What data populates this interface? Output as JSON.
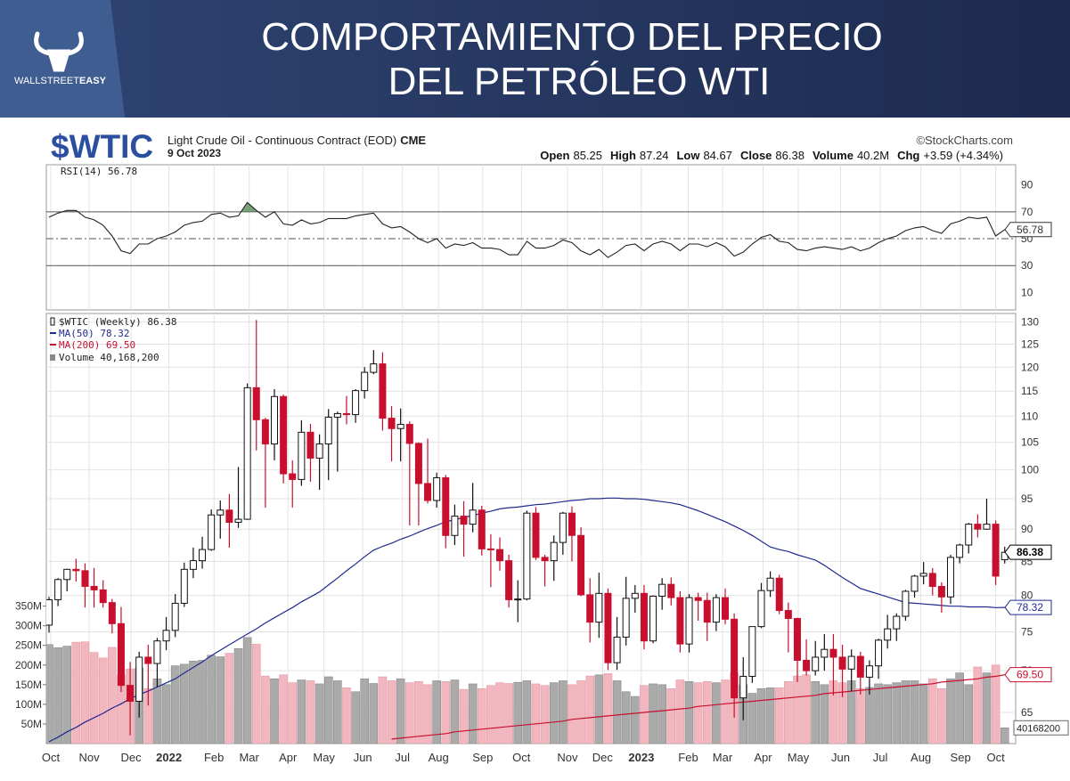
{
  "header": {
    "title_lines": [
      "COMPORTAMIENTO DEL PRECIO",
      "DEL PETRÓLEO WTI"
    ],
    "logo": [
      "WALLSTREET",
      "EASY"
    ]
  },
  "chart_data": {
    "type": "candlestick",
    "symbol": "$WTIC",
    "description": "Light Crude Oil - Continuous Contract (EOD)",
    "exchange": "CME",
    "date": "9 Oct 2023",
    "source": "©StockCharts.com",
    "quote": [
      {
        "label": "Open",
        "value": "85.25"
      },
      {
        "label": "High",
        "value": "87.24"
      },
      {
        "label": "Low",
        "value": "84.67"
      },
      {
        "label": "Close",
        "value": "86.38"
      },
      {
        "label": "Volume",
        "value": "40.2M"
      },
      {
        "label": "Chg",
        "value": "+3.59 (+4.34%)"
      }
    ],
    "price_name": "$WTIC (Weekly) 86.38",
    "log": true,
    "grid": true,
    "ylim": [
      61.5,
      132
    ],
    "yticks": [
      65,
      70,
      75,
      80,
      85,
      90,
      95,
      100,
      105,
      110,
      115,
      120,
      125,
      130
    ],
    "y2lim": [
      0,
      1095000000
    ],
    "y2ticks": [
      {
        "value": 50000000,
        "label": "50M"
      },
      {
        "value": 100000000,
        "label": "100M"
      },
      {
        "value": 150000000,
        "label": "150M"
      },
      {
        "value": 200000000,
        "label": "200M"
      },
      {
        "value": 250000000,
        "label": "250M"
      },
      {
        "value": 300000000,
        "label": "300M"
      },
      {
        "value": 350000000,
        "label": "350M"
      }
    ],
    "xticks": [
      {
        "value": 0.2,
        "label": "Oct"
      },
      {
        "value": 4.45,
        "label": "Nov"
      },
      {
        "value": 9.1,
        "label": "Dec"
      },
      {
        "value": 13.3,
        "label": "2022"
      },
      {
        "value": 18.3,
        "label": "Feb"
      },
      {
        "value": 22.2,
        "label": "Mar"
      },
      {
        "value": 26.5,
        "label": "Apr"
      },
      {
        "value": 30.5,
        "label": "May"
      },
      {
        "value": 34.8,
        "label": "Jun"
      },
      {
        "value": 39.2,
        "label": "Jul"
      },
      {
        "value": 43.2,
        "label": "Aug"
      },
      {
        "value": 48.1,
        "label": "Sep"
      },
      {
        "value": 52.4,
        "label": "Oct"
      },
      {
        "value": 57.5,
        "label": "Nov"
      },
      {
        "value": 61.4,
        "label": "Dec"
      },
      {
        "value": 65.7,
        "label": "2023"
      },
      {
        "value": 70.9,
        "label": "Feb"
      },
      {
        "value": 74.7,
        "label": "Mar"
      },
      {
        "value": 79.2,
        "label": "Apr"
      },
      {
        "value": 83.1,
        "label": "May"
      },
      {
        "value": 87.8,
        "label": "Jun"
      },
      {
        "value": 92.2,
        "label": "Jul"
      },
      {
        "value": 96.7,
        "label": "Aug"
      },
      {
        "value": 101.1,
        "label": "Sep"
      },
      {
        "value": 105,
        "label": "Oct"
      }
    ],
    "colors": {
      "up": "#ffffff",
      "down": "#c8102e",
      "volume_up": "#aaaaaa",
      "volume_down": "#f2b6bf",
      "rsi_fill": "#5a8a5a"
    },
    "candles": [
      [
        75.9,
        79.8,
        74.9,
        79.4
      ],
      [
        79.4,
        82.5,
        78.5,
        82.3
      ],
      [
        82.3,
        83.9,
        80.6,
        83.8
      ],
      [
        83.8,
        85.4,
        82.0,
        83.6
      ],
      [
        83.6,
        84.7,
        78.3,
        81.3
      ],
      [
        81.3,
        84.0,
        78.3,
        80.8
      ],
      [
        80.8,
        82.2,
        78.3,
        79.0
      ],
      [
        79.0,
        79.5,
        74.8,
        76.1
      ],
      [
        76.1,
        78.4,
        67.4,
        68.2
      ],
      [
        68.2,
        71.1,
        62.4,
        66.3
      ],
      [
        66.3,
        72.4,
        64.4,
        71.7
      ],
      [
        71.7,
        73.3,
        65.8,
        70.9
      ],
      [
        70.9,
        74.2,
        68.0,
        73.8
      ],
      [
        73.8,
        77.0,
        72.6,
        75.2
      ],
      [
        75.2,
        80.2,
        74.3,
        78.9
      ],
      [
        78.9,
        84.8,
        78.4,
        83.8
      ],
      [
        83.8,
        87.1,
        82.5,
        85.1
      ],
      [
        85.1,
        88.8,
        83.9,
        86.8
      ],
      [
        86.8,
        93.2,
        86.6,
        92.3
      ],
      [
        92.3,
        94.7,
        88.5,
        93.1
      ],
      [
        93.1,
        95.8,
        87.1,
        91.1
      ],
      [
        91.1,
        100.5,
        90.2,
        91.6
      ],
      [
        91.6,
        116.6,
        91.5,
        115.7
      ],
      [
        115.7,
        130.5,
        103.5,
        109.3
      ],
      [
        109.3,
        109.7,
        93.5,
        104.7
      ],
      [
        104.7,
        115.4,
        101.7,
        113.9
      ],
      [
        113.9,
        114.3,
        97.6,
        99.3
      ],
      [
        99.3,
        101.7,
        93.5,
        98.3
      ],
      [
        98.3,
        109.2,
        97.2,
        106.9
      ],
      [
        106.9,
        108.5,
        97.9,
        102.1
      ],
      [
        102.1,
        106.5,
        96.5,
        104.7
      ],
      [
        104.7,
        111.4,
        98.2,
        109.8
      ],
      [
        109.8,
        110.9,
        99.7,
        110.5
      ],
      [
        110.5,
        114.0,
        108.4,
        110.3
      ],
      [
        110.3,
        115.4,
        108.7,
        115.1
      ],
      [
        115.1,
        120.0,
        113.5,
        118.9
      ],
      [
        118.9,
        123.7,
        118.5,
        120.7
      ],
      [
        120.7,
        123.2,
        107.2,
        109.6
      ],
      [
        109.6,
        112.0,
        101.5,
        107.6
      ],
      [
        107.6,
        111.5,
        101.5,
        108.4
      ],
      [
        108.4,
        109.0,
        90.6,
        104.8
      ],
      [
        104.8,
        105.0,
        90.6,
        97.6
      ],
      [
        97.6,
        105.7,
        94.2,
        94.7
      ],
      [
        94.7,
        99.5,
        93.5,
        98.6
      ],
      [
        98.6,
        99.1,
        87.0,
        89.0
      ],
      [
        89.0,
        94.0,
        87.5,
        92.1
      ],
      [
        92.1,
        94.6,
        85.7,
        90.8
      ],
      [
        90.8,
        97.7,
        89.5,
        93.1
      ],
      [
        93.1,
        93.8,
        85.9,
        86.9
      ],
      [
        86.9,
        89.2,
        81.2,
        86.8
      ],
      [
        86.8,
        88.7,
        83.6,
        85.1
      ],
      [
        85.1,
        86.0,
        78.3,
        79.4
      ],
      [
        79.4,
        82.2,
        76.3,
        79.5
      ],
      [
        79.5,
        93.0,
        79.3,
        92.6
      ],
      [
        92.6,
        93.6,
        85.2,
        85.6
      ],
      [
        85.6,
        86.0,
        81.3,
        85.1
      ],
      [
        85.1,
        89.0,
        82.1,
        87.9
      ],
      [
        87.9,
        92.8,
        86.0,
        92.6
      ],
      [
        92.6,
        93.7,
        85.0,
        89.0
      ],
      [
        89.0,
        90.3,
        79.9,
        80.1
      ],
      [
        80.1,
        82.5,
        73.6,
        76.3
      ],
      [
        76.3,
        83.3,
        74.2,
        80.3
      ],
      [
        80.3,
        81.0,
        70.1,
        71.0
      ],
      [
        71.0,
        77.0,
        70.1,
        74.3
      ],
      [
        74.3,
        82.7,
        73.2,
        79.6
      ],
      [
        79.6,
        81.5,
        77.6,
        80.3
      ],
      [
        80.3,
        81.5,
        72.7,
        73.8
      ],
      [
        73.8,
        80.0,
        73.5,
        79.9
      ],
      [
        79.9,
        82.5,
        78.0,
        81.6
      ],
      [
        81.6,
        82.6,
        78.6,
        79.7
      ],
      [
        79.7,
        80.6,
        72.3,
        73.4
      ],
      [
        73.4,
        80.2,
        72.3,
        79.7
      ],
      [
        79.7,
        80.4,
        76.5,
        79.3
      ],
      [
        79.3,
        80.4,
        73.8,
        76.3
      ],
      [
        76.3,
        80.2,
        75.1,
        79.7
      ],
      [
        79.7,
        81.0,
        76.0,
        76.7
      ],
      [
        76.7,
        77.5,
        64.4,
        66.7
      ],
      [
        66.7,
        71.7,
        64.1,
        69.3
      ],
      [
        69.3,
        75.7,
        68.5,
        75.7
      ],
      [
        75.7,
        81.8,
        75.5,
        80.7
      ],
      [
        80.7,
        83.5,
        79.8,
        82.5
      ],
      [
        82.5,
        83.0,
        77.4,
        77.9
      ],
      [
        77.9,
        79.0,
        72.3,
        76.8
      ],
      [
        76.8,
        76.9,
        68.6,
        71.3
      ],
      [
        71.3,
        74.0,
        69.4,
        70.0
      ],
      [
        70.0,
        73.8,
        69.4,
        71.7
      ],
      [
        71.7,
        74.7,
        70.0,
        72.7
      ],
      [
        72.7,
        74.7,
        67.0,
        71.7
      ],
      [
        71.7,
        73.3,
        66.8,
        70.2
      ],
      [
        70.2,
        72.7,
        67.5,
        71.8
      ],
      [
        71.8,
        72.4,
        67.1,
        69.2
      ],
      [
        69.2,
        71.3,
        67.1,
        70.6
      ],
      [
        70.6,
        74.1,
        69.0,
        73.9
      ],
      [
        73.9,
        77.3,
        72.8,
        75.4
      ],
      [
        75.4,
        77.5,
        73.8,
        77.1
      ],
      [
        77.1,
        80.8,
        76.5,
        80.6
      ],
      [
        80.6,
        83.0,
        79.7,
        82.8
      ],
      [
        82.8,
        84.9,
        81.6,
        83.2
      ],
      [
        83.2,
        84.0,
        80.0,
        81.3
      ],
      [
        81.3,
        81.9,
        77.6,
        79.8
      ],
      [
        79.8,
        86.0,
        78.8,
        85.6
      ],
      [
        85.6,
        87.7,
        84.7,
        87.5
      ],
      [
        87.5,
        91.0,
        86.2,
        90.8
      ],
      [
        90.8,
        92.4,
        88.7,
        90.0
      ],
      [
        90.0,
        95.0,
        89.9,
        90.8
      ],
      [
        90.8,
        91.4,
        81.5,
        82.8
      ],
      [
        85.25,
        87.24,
        84.67,
        86.38
      ]
    ],
    "volume": {
      "name": "Volume 40,168,200",
      "values": [
        252000000,
        244000000,
        248000000,
        258000000,
        259000000,
        232000000,
        218000000,
        245000000,
        175000000,
        190000000,
        192000000,
        140000000,
        165000000,
        150000000,
        198000000,
        202000000,
        210000000,
        212000000,
        225000000,
        221000000,
        230000000,
        242000000,
        270000000,
        253000000,
        172000000,
        165000000,
        175000000,
        155000000,
        162000000,
        160000000,
        152000000,
        170000000,
        160000000,
        142000000,
        132000000,
        165000000,
        153000000,
        170000000,
        160000000,
        165000000,
        155000000,
        158000000,
        150000000,
        160000000,
        158000000,
        162000000,
        138000000,
        152000000,
        140000000,
        148000000,
        155000000,
        153000000,
        156000000,
        160000000,
        152000000,
        148000000,
        155000000,
        160000000,
        150000000,
        160000000,
        172000000,
        175000000,
        178000000,
        160000000,
        132000000,
        120000000,
        148000000,
        152000000,
        150000000,
        140000000,
        162000000,
        158000000,
        155000000,
        158000000,
        155000000,
        162000000,
        180000000,
        150000000,
        128000000,
        140000000,
        142000000,
        142000000,
        158000000,
        172000000,
        175000000,
        158000000,
        150000000,
        160000000,
        155000000,
        160000000,
        140000000,
        143000000,
        152000000,
        150000000,
        155000000,
        160000000,
        160000000,
        152000000,
        165000000,
        140000000,
        165000000,
        180000000,
        150000000,
        195000000,
        180000000,
        200000000,
        40168200
      ]
    },
    "series": [
      {
        "name": "MA(50) 78.32",
        "color": "#1f2a8f",
        "values": [
          61.7,
          62.2,
          62.8,
          63.3,
          63.9,
          64.4,
          64.9,
          65.5,
          66.0,
          66.6,
          67.1,
          67.5,
          68.0,
          68.5,
          69.0,
          69.7,
          70.4,
          71.1,
          71.9,
          72.6,
          73.3,
          74.0,
          74.7,
          75.4,
          76.2,
          76.9,
          77.6,
          78.3,
          79.1,
          79.8,
          80.5,
          81.5,
          82.5,
          83.6,
          84.6,
          85.7,
          86.7,
          87.3,
          87.8,
          88.4,
          88.9,
          89.5,
          90.1,
          90.6,
          91.2,
          91.5,
          91.9,
          92.2,
          92.6,
          92.9,
          93.3,
          93.5,
          93.6,
          93.8,
          94.0,
          94.1,
          94.3,
          94.5,
          94.7,
          94.8,
          95.0,
          95.0,
          95.1,
          95.1,
          95.0,
          95.0,
          94.9,
          94.7,
          94.5,
          94.3,
          94.0,
          93.5,
          93.0,
          92.4,
          91.8,
          91.2,
          90.5,
          89.8,
          89.0,
          88.1,
          87.2,
          86.8,
          86.5,
          86.0,
          85.6,
          85.2,
          84.4,
          83.5,
          82.6,
          81.8,
          81.0,
          80.6,
          80.2,
          79.8,
          79.4,
          79.0,
          78.9,
          78.8,
          78.7,
          78.6,
          78.5,
          78.5,
          78.4,
          78.4,
          78.4,
          78.3,
          78.32
        ]
      },
      {
        "name": "MA(200) 69.50",
        "color": "#c8102e",
        "end_label": "69.50",
        "values": [
          null,
          null,
          null,
          null,
          null,
          null,
          null,
          null,
          null,
          null,
          null,
          null,
          null,
          null,
          null,
          null,
          null,
          null,
          null,
          null,
          null,
          null,
          null,
          null,
          null,
          null,
          null,
          null,
          null,
          null,
          null,
          null,
          null,
          null,
          null,
          null,
          null,
          null,
          62.0,
          62.1,
          62.2,
          62.3,
          62.4,
          62.5,
          62.6,
          62.8,
          62.9,
          63.0,
          63.1,
          63.2,
          63.3,
          63.4,
          63.5,
          63.6,
          63.7,
          63.8,
          63.9,
          64.0,
          64.2,
          64.3,
          64.4,
          64.5,
          64.6,
          64.7,
          64.8,
          64.9,
          65.0,
          65.1,
          65.2,
          65.3,
          65.4,
          65.5,
          65.7,
          65.8,
          65.9,
          66.0,
          66.1,
          66.2,
          66.3,
          66.4,
          66.5,
          66.6,
          66.7,
          66.8,
          66.9,
          67.0,
          67.2,
          67.3,
          67.4,
          67.5,
          67.6,
          67.7,
          67.8,
          67.9,
          68.0,
          68.1,
          68.2,
          68.3,
          68.4,
          68.6,
          68.7,
          68.8,
          68.9,
          69.0,
          69.2,
          69.3,
          69.5
        ]
      }
    ],
    "rsi": {
      "name": "RSI(14) 56.78",
      "ylim": [
        -3,
        105
      ],
      "yticks": [
        10,
        30,
        50,
        70,
        90
      ],
      "levels": [
        {
          "value": 70,
          "dashed": false
        },
        {
          "value": 50,
          "dashed": true
        },
        {
          "value": 30,
          "dashed": false
        }
      ],
      "values": [
        66,
        69,
        71,
        71,
        66,
        64,
        60,
        52,
        41,
        39,
        46,
        46,
        50,
        52,
        55,
        60,
        62,
        63,
        68,
        69,
        66,
        67,
        77,
        71,
        66,
        70,
        61,
        60,
        64,
        61,
        62,
        65,
        65,
        65,
        67,
        68,
        69,
        61,
        58,
        59,
        55,
        50,
        47,
        50,
        43,
        46,
        45,
        47,
        43,
        43,
        42,
        38,
        38,
        48,
        43,
        43,
        45,
        49,
        47,
        41,
        38,
        42,
        36,
        40,
        45,
        46,
        41,
        46,
        48,
        46,
        41,
        46,
        46,
        44,
        47,
        44,
        37,
        40,
        46,
        51,
        53,
        48,
        47,
        42,
        41,
        43,
        44,
        43,
        42,
        44,
        41,
        43,
        47,
        50,
        52,
        56,
        58,
        59,
        56,
        54,
        61,
        63,
        66,
        65,
        66,
        52,
        56.78
      ]
    }
  }
}
